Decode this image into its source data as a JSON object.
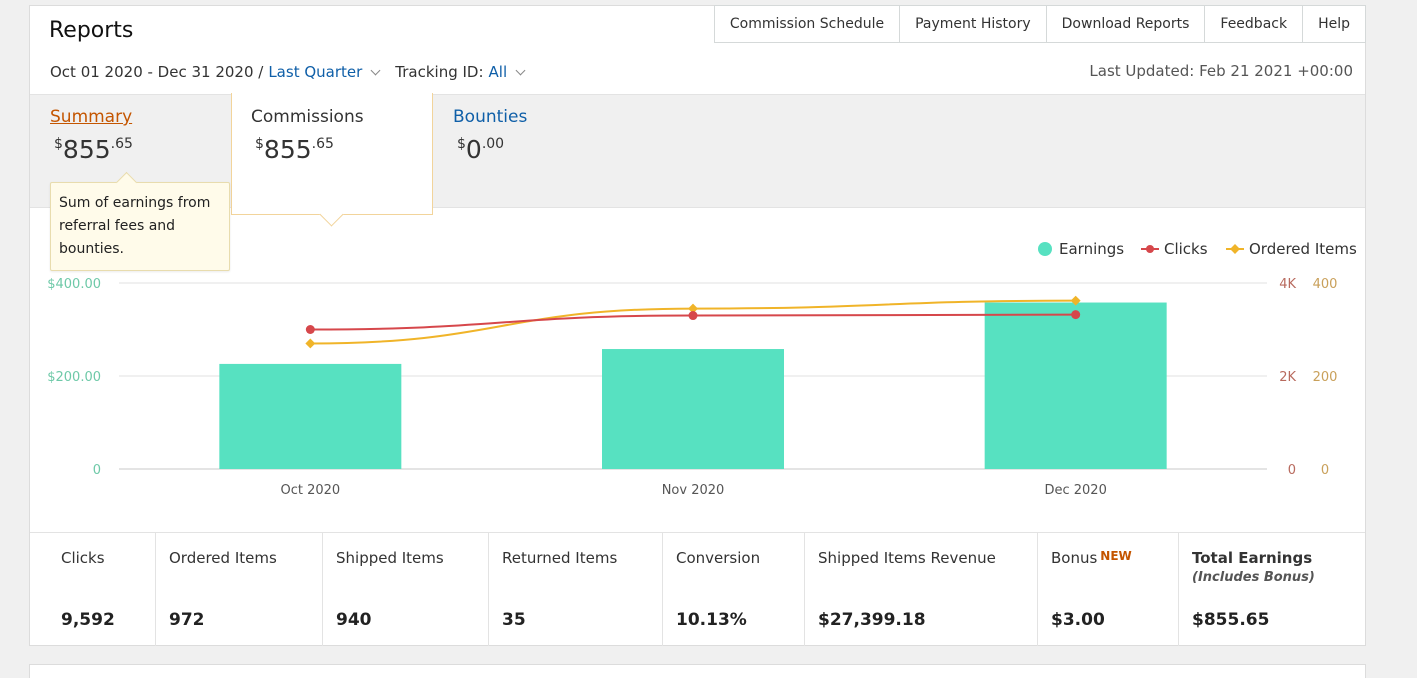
{
  "header": {
    "title": "Reports",
    "nav": [
      "Commission Schedule",
      "Payment History",
      "Download Reports",
      "Feedback",
      "Help"
    ],
    "date_range": "Oct 01 2020 - Dec 31 2020 /",
    "period": "Last Quarter",
    "tracking_label": "Tracking ID:",
    "tracking_value": "All",
    "last_updated": "Last Updated: Feb 21 2021 +00:00"
  },
  "tabs": {
    "summary": {
      "label": "Summary",
      "currency": "$",
      "whole": "855",
      "cents": ".65"
    },
    "commissions": {
      "label": "Commissions",
      "currency": "$",
      "whole": "855",
      "cents": ".65"
    },
    "bounties": {
      "label": "Bounties",
      "currency": "$",
      "whole": "0",
      "cents": ".00"
    }
  },
  "tooltip": "Sum of earnings from referral fees and bounties.",
  "colors": {
    "earnings": "#57e1c1",
    "clicks": "#d6474b",
    "ordered": "#f0b429",
    "link": "#0f5fa8",
    "summary": "#c45500"
  },
  "chart_data": {
    "type": "bar",
    "categories": [
      "Oct 2020",
      "Nov 2020",
      "Dec 2020"
    ],
    "legend": [
      "Earnings",
      "Clicks",
      "Ordered Items"
    ],
    "series": [
      {
        "name": "Earnings",
        "type": "bar",
        "axis": "left",
        "values": [
          226,
          258,
          358
        ]
      },
      {
        "name": "Clicks",
        "type": "line",
        "axis": "right1",
        "values": [
          3000,
          3300,
          3320
        ]
      },
      {
        "name": "Ordered Items",
        "type": "line",
        "axis": "right2",
        "values": [
          270,
          345,
          362
        ]
      }
    ],
    "left_axis": {
      "ticks": [
        "0",
        "$200.00",
        "$400.00"
      ],
      "ylim": [
        0,
        400
      ]
    },
    "right_axis_1": {
      "ticks": [
        "0",
        "2K",
        "4K"
      ],
      "ylim": [
        0,
        4000
      ]
    },
    "right_axis_2": {
      "ticks": [
        "0",
        "200",
        "400"
      ],
      "ylim": [
        0,
        400
      ]
    },
    "legend_position": "top-right",
    "grid": true
  },
  "stats": [
    {
      "label": "Clicks",
      "value": "9,592"
    },
    {
      "label": "Ordered Items",
      "value": "972"
    },
    {
      "label": "Shipped Items",
      "value": "940"
    },
    {
      "label": "Returned Items",
      "value": "35"
    },
    {
      "label": "Conversion",
      "value": "10.13%"
    },
    {
      "label": "Shipped Items Revenue",
      "value": "$27,399.18"
    },
    {
      "label": "Bonus",
      "badge": "NEW",
      "value": "$3.00"
    },
    {
      "label": "Total Earnings",
      "sub": "(Includes Bonus)",
      "value": "$855.65"
    }
  ]
}
